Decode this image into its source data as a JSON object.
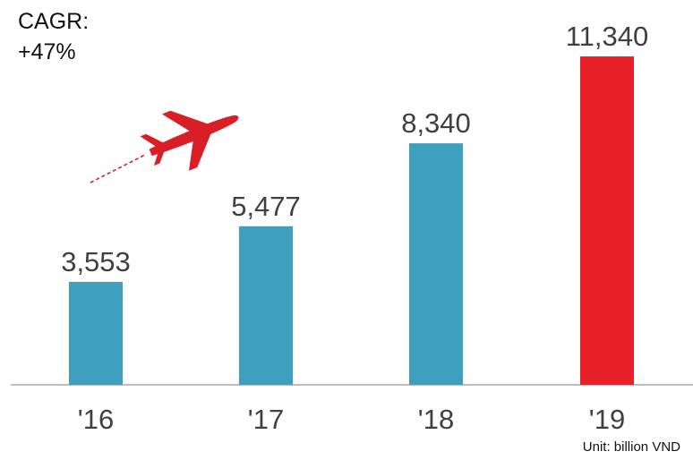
{
  "annotation": {
    "cagr_label": "CAGR:",
    "cagr_value": "+47%"
  },
  "unit_note": "Unit: billion VND",
  "icons": {
    "plane": "airplane-icon"
  },
  "colors": {
    "bar_default": "#3f9fbe",
    "bar_highlight": "#e8202a",
    "axis": "#bfbfbf",
    "plane": "#d91e26",
    "label": "#404040"
  },
  "chart_data": {
    "type": "bar",
    "categories": [
      "'16",
      "'17",
      "'18",
      "'19"
    ],
    "values": [
      3553,
      5477,
      8340,
      11340
    ],
    "value_labels": [
      "3,553",
      "5,477",
      "8,340",
      "11,340"
    ],
    "highlight_index": 3,
    "title": "",
    "xlabel": "",
    "ylabel": "",
    "ylim": [
      0,
      12300
    ],
    "grid": false,
    "legend": "none"
  }
}
